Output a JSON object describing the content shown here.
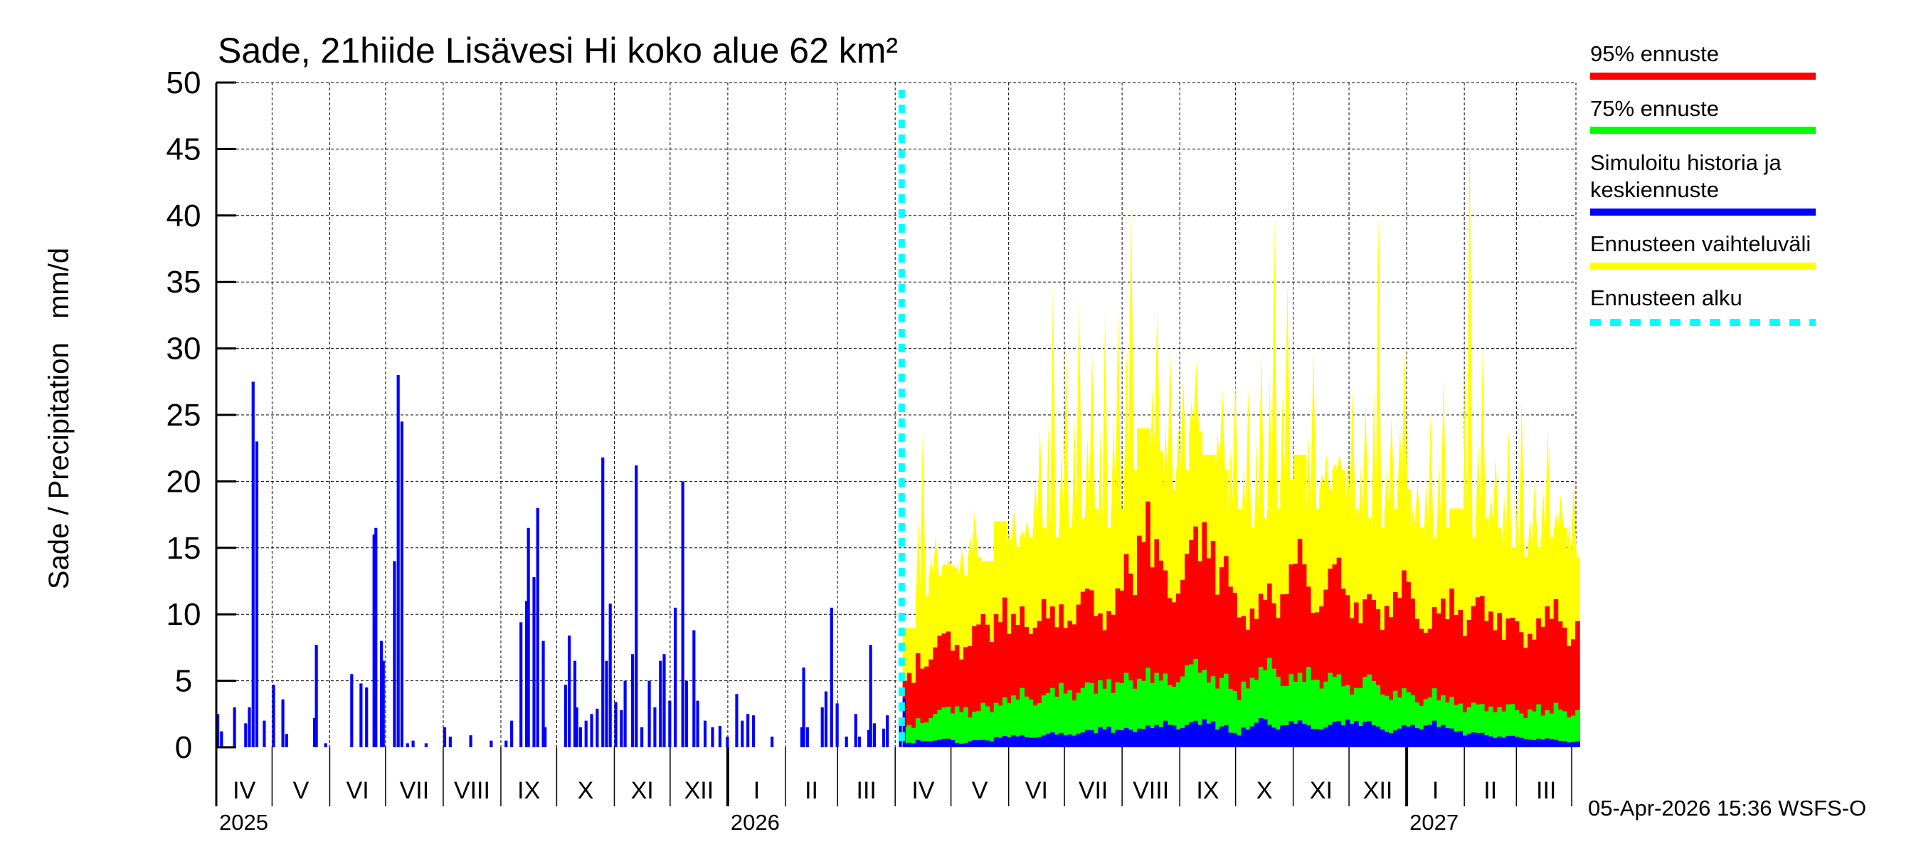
{
  "chart_data": {
    "type": "bar",
    "title": "Sade, 21hiide Lisävesi Hi koko alue 62 km²",
    "ylabel": "Sade / Precipitation   mm/d",
    "xlabel": "",
    "ylim": [
      0,
      50
    ],
    "yticks": [
      0,
      5,
      10,
      15,
      20,
      25,
      30,
      35,
      40,
      45,
      50
    ],
    "xlim": [
      "2025-04-01",
      "2027-04-01"
    ],
    "grid": true,
    "month_labels": [
      {
        "date": "2025-04-01",
        "label": "IV"
      },
      {
        "date": "2025-05-01",
        "label": "V"
      },
      {
        "date": "2025-06-01",
        "label": "VI"
      },
      {
        "date": "2025-07-01",
        "label": "VII"
      },
      {
        "date": "2025-08-01",
        "label": "VIII"
      },
      {
        "date": "2025-09-01",
        "label": "IX"
      },
      {
        "date": "2025-10-01",
        "label": "X"
      },
      {
        "date": "2025-11-01",
        "label": "XI"
      },
      {
        "date": "2025-12-01",
        "label": "XII"
      },
      {
        "date": "2026-01-01",
        "label": "I"
      },
      {
        "date": "2026-02-01",
        "label": "II"
      },
      {
        "date": "2026-03-01",
        "label": "III"
      },
      {
        "date": "2026-04-01",
        "label": "IV"
      },
      {
        "date": "2026-05-01",
        "label": "V"
      },
      {
        "date": "2026-06-01",
        "label": "VI"
      },
      {
        "date": "2026-07-01",
        "label": "VII"
      },
      {
        "date": "2026-08-01",
        "label": "VIII"
      },
      {
        "date": "2026-09-01",
        "label": "IX"
      },
      {
        "date": "2026-10-01",
        "label": "X"
      },
      {
        "date": "2026-11-01",
        "label": "XI"
      },
      {
        "date": "2026-12-01",
        "label": "XII"
      },
      {
        "date": "2027-01-01",
        "label": "I"
      },
      {
        "date": "2027-02-01",
        "label": "II"
      },
      {
        "date": "2027-03-01",
        "label": "III"
      }
    ],
    "year_labels": [
      {
        "date": "2025-04-01",
        "label": "2025"
      },
      {
        "date": "2026-01-01",
        "label": "2026"
      },
      {
        "date": "2027-01-01",
        "label": "2027"
      }
    ],
    "forecast_start": "2026-04-04",
    "colors": {
      "p95": "#ff0000",
      "p75": "#00ff00",
      "median": "#0000ff",
      "range": "#ffff00",
      "forecast_start": "#00ffff"
    },
    "legend": {
      "placement": "right",
      "items": [
        {
          "label": "95% ennuste",
          "color": "#ff0000",
          "style": "solid"
        },
        {
          "label": "75% ennuste",
          "color": "#00ff00",
          "style": "solid"
        },
        {
          "label": "Simuloitu historia ja\nkeskiennuste",
          "color": "#0000ff",
          "style": "solid"
        },
        {
          "label": "Ennusteen vaihteluväli",
          "color": "#ffff00",
          "style": "solid"
        },
        {
          "label": "Ennusteen alku",
          "color": "#00ffff",
          "style": "dashed"
        }
      ]
    },
    "historical": [
      [
        "2025-04-01",
        2.5
      ],
      [
        "2025-04-03",
        1.2
      ],
      [
        "2025-04-10",
        3.0
      ],
      [
        "2025-04-16",
        1.8
      ],
      [
        "2025-04-18",
        3.0
      ],
      [
        "2025-04-20",
        27.5
      ],
      [
        "2025-04-22",
        23.0
      ],
      [
        "2025-04-26",
        2.0
      ],
      [
        "2025-05-01",
        4.7
      ],
      [
        "2025-05-06",
        3.6
      ],
      [
        "2025-05-08",
        1.0
      ],
      [
        "2025-05-23",
        2.2
      ],
      [
        "2025-05-24",
        7.7
      ],
      [
        "2025-05-29",
        0.3
      ],
      [
        "2025-06-12",
        5.5
      ],
      [
        "2025-06-17",
        4.8
      ],
      [
        "2025-06-20",
        4.5
      ],
      [
        "2025-06-24",
        16.0
      ],
      [
        "2025-06-25",
        16.5
      ],
      [
        "2025-06-28",
        8.0
      ],
      [
        "2025-06-29",
        6.5
      ],
      [
        "2025-07-05",
        14.0
      ],
      [
        "2025-07-07",
        28.0
      ],
      [
        "2025-07-09",
        24.5
      ],
      [
        "2025-07-12",
        0.3
      ],
      [
        "2025-07-15",
        0.5
      ],
      [
        "2025-07-22",
        0.3
      ],
      [
        "2025-08-01",
        1.5
      ],
      [
        "2025-08-04",
        0.8
      ],
      [
        "2025-08-15",
        0.9
      ],
      [
        "2025-08-26",
        0.5
      ],
      [
        "2025-09-03",
        0.5
      ],
      [
        "2025-09-06",
        2.0
      ],
      [
        "2025-09-11",
        9.4
      ],
      [
        "2025-09-14",
        11.0
      ],
      [
        "2025-09-15",
        16.5
      ],
      [
        "2025-09-18",
        12.8
      ],
      [
        "2025-09-20",
        18.0
      ],
      [
        "2025-09-23",
        8.0
      ],
      [
        "2025-09-24",
        1.5
      ],
      [
        "2025-10-05",
        4.7
      ],
      [
        "2025-10-07",
        8.4
      ],
      [
        "2025-10-10",
        6.5
      ],
      [
        "2025-10-11",
        3.0
      ],
      [
        "2025-10-13",
        1.5
      ],
      [
        "2025-10-16",
        2.0
      ],
      [
        "2025-10-19",
        2.5
      ],
      [
        "2025-10-22",
        2.9
      ],
      [
        "2025-10-25",
        21.8
      ],
      [
        "2025-10-27",
        6.5
      ],
      [
        "2025-10-29",
        10.8
      ],
      [
        "2025-11-01",
        3.4
      ],
      [
        "2025-11-04",
        2.8
      ],
      [
        "2025-11-06",
        5.0
      ],
      [
        "2025-11-10",
        7.0
      ],
      [
        "2025-11-12",
        21.2
      ],
      [
        "2025-11-15",
        1.5
      ],
      [
        "2025-11-19",
        5.0
      ],
      [
        "2025-11-22",
        3.0
      ],
      [
        "2025-11-25",
        6.5
      ],
      [
        "2025-11-27",
        7.0
      ],
      [
        "2025-11-30",
        3.5
      ],
      [
        "2025-12-03",
        10.5
      ],
      [
        "2025-12-07",
        20.0
      ],
      [
        "2025-12-09",
        5.0
      ],
      [
        "2025-12-13",
        8.8
      ],
      [
        "2025-12-15",
        3.5
      ],
      [
        "2025-12-19",
        2.0
      ],
      [
        "2025-12-23",
        1.5
      ],
      [
        "2025-12-27",
        1.6
      ],
      [
        "2025-12-31",
        0.8
      ],
      [
        "2026-01-05",
        4.0
      ],
      [
        "2026-01-08",
        2.0
      ],
      [
        "2026-01-11",
        2.5
      ],
      [
        "2026-01-14",
        2.4
      ],
      [
        "2026-01-24",
        0.8
      ],
      [
        "2026-02-09",
        1.5
      ],
      [
        "2026-02-10",
        6.0
      ],
      [
        "2026-02-12",
        1.5
      ],
      [
        "2026-02-20",
        3.0
      ],
      [
        "2026-02-22",
        4.2
      ],
      [
        "2026-02-25",
        10.5
      ],
      [
        "2026-02-28",
        3.3
      ],
      [
        "2026-03-05",
        0.8
      ],
      [
        "2026-03-10",
        2.5
      ],
      [
        "2026-03-12",
        0.8
      ],
      [
        "2026-03-17",
        1.3
      ],
      [
        "2026-03-18",
        7.7
      ],
      [
        "2026-03-20",
        1.8
      ],
      [
        "2026-03-25",
        1.4
      ],
      [
        "2026-03-27",
        2.4
      ],
      [
        "2026-04-03",
        2.0
      ],
      [
        "2026-04-05",
        3.7
      ]
    ],
    "forecast": {
      "period": "week",
      "first_week": "2026-04-05",
      "range_max": [
        9,
        24,
        16,
        14,
        15,
        18,
        14,
        17,
        18,
        17,
        24,
        35,
        30,
        34,
        30,
        33,
        33,
        41,
        24,
        33,
        30,
        28,
        29,
        22,
        27,
        28,
        27,
        30,
        40,
        35,
        22,
        30,
        22,
        22,
        27,
        26,
        40,
        25,
        30,
        20,
        25,
        28,
        18,
        47,
        30,
        22,
        24,
        26,
        20,
        24,
        19,
        20
      ],
      "p95": [
        5,
        6.5,
        7.5,
        8,
        7.5,
        8.5,
        9,
        10.5,
        9,
        9.5,
        10,
        9.5,
        10,
        10.5,
        11,
        10,
        11,
        13,
        17,
        14,
        12,
        13,
        15,
        16,
        13,
        11,
        10,
        10.5,
        11,
        12.5,
        14,
        11,
        12,
        13,
        11,
        10.5,
        10,
        11,
        12,
        10,
        9.5,
        10,
        11,
        9.5,
        10.5,
        10,
        9,
        8.5,
        9,
        9.5,
        10,
        8.5
      ],
      "p75": [
        1.5,
        2,
        2.5,
        2.8,
        3,
        2.5,
        3,
        3.5,
        3.5,
        4,
        3.5,
        4,
        4.5,
        4,
        4.5,
        5,
        4.5,
        5,
        5.5,
        5,
        5,
        5.5,
        6,
        5.5,
        5,
        4,
        5,
        5.5,
        6,
        5,
        5,
        5.5,
        5,
        5,
        4.5,
        5,
        4.5,
        4,
        4,
        3.5,
        4,
        3.5,
        3.5,
        3,
        3,
        3,
        3,
        2.5,
        3,
        2.5,
        3,
        2.5
      ],
      "median": [
        0.3,
        0.5,
        0.5,
        0.6,
        0.3,
        0.5,
        0.5,
        0.8,
        0.8,
        0.8,
        0.8,
        1,
        1,
        1,
        1.2,
        1.5,
        1.2,
        1.3,
        1.5,
        1.5,
        1.8,
        1.5,
        1.8,
        2,
        1.5,
        1,
        1.5,
        2,
        1.5,
        1.8,
        1.8,
        1.5,
        1.5,
        1.8,
        2,
        1.8,
        1.5,
        1.2,
        1.5,
        1.5,
        1.8,
        1.5,
        1.3,
        1,
        1,
        0.8,
        0.8,
        0.7,
        0.6,
        0.6,
        0.5,
        0.4
      ]
    }
  },
  "footer": "05-Apr-2026 15:36 WSFS-O"
}
